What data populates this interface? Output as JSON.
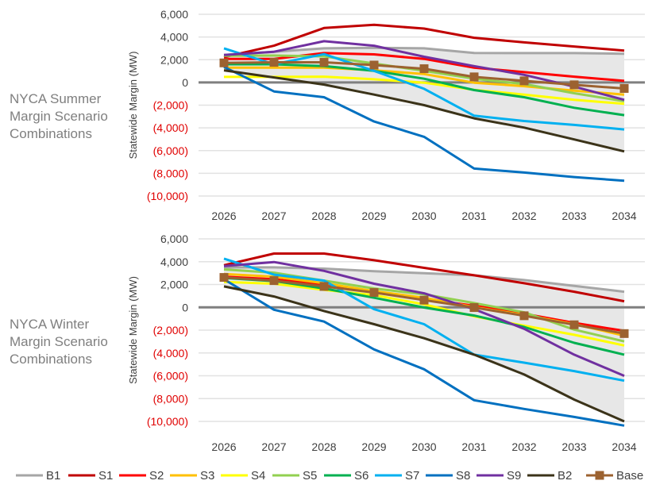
{
  "chart_data": [
    {
      "type": "line",
      "title": "NYCA Summer Margin Scenario Combinations",
      "title_lines": [
        "NYCA Summer",
        "Margin Scenario",
        "Combinations"
      ],
      "ylabel": "Statewide Margin (MW)",
      "xlabel": "",
      "categories": [
        "2026",
        "2027",
        "2028",
        "2029",
        "2030",
        "2031",
        "2032",
        "2033",
        "2034"
      ],
      "ylim": [
        -10000,
        6000
      ],
      "yticks": [
        "6,000",
        "4,000",
        "2,000",
        "0",
        "(2,000)",
        "(4,000)",
        "(6,000)",
        "(8,000)",
        "(10,000)"
      ],
      "ytick_values": [
        6000,
        4000,
        2000,
        0,
        -2000,
        -4000,
        -6000,
        -8000,
        -10000
      ],
      "grid": true,
      "shaded_band": "between B1 and B2",
      "series": [
        {
          "name": "B1",
          "values": [
            2420,
            2700,
            3000,
            3050,
            3000,
            2600,
            2580,
            2580,
            2530
          ]
        },
        {
          "name": "S1",
          "values": [
            2230,
            3230,
            4790,
            5070,
            4740,
            3930,
            3530,
            3160,
            2810
          ]
        },
        {
          "name": "S2",
          "values": [
            2070,
            2070,
            2580,
            2470,
            2070,
            1300,
            910,
            510,
            140
          ]
        },
        {
          "name": "S3",
          "values": [
            1300,
            1300,
            1300,
            1070,
            740,
            -20,
            -330,
            -720,
            -1070
          ]
        },
        {
          "name": "S4",
          "values": [
            490,
            490,
            510,
            280,
            -20,
            -650,
            -1070,
            -1530,
            -1880
          ]
        },
        {
          "name": "S5",
          "values": [
            2350,
            2370,
            2300,
            1670,
            1020,
            330,
            -140,
            -950,
            -1650
          ]
        },
        {
          "name": "S6",
          "values": [
            1600,
            1600,
            1440,
            1020,
            330,
            -670,
            -1300,
            -2230,
            -2880
          ]
        },
        {
          "name": "S7",
          "values": [
            3000,
            1600,
            2490,
            1020,
            -560,
            -2930,
            -3400,
            -3740,
            -4140
          ]
        },
        {
          "name": "S8",
          "values": [
            1370,
            -790,
            -1300,
            -3440,
            -4790,
            -7580,
            -7930,
            -8330,
            -8650
          ]
        },
        {
          "name": "S9",
          "values": [
            2420,
            2700,
            3630,
            3230,
            2260,
            1440,
            670,
            -370,
            -1530
          ]
        },
        {
          "name": "B2",
          "values": [
            1070,
            440,
            -190,
            -1070,
            -2000,
            -3160,
            -3980,
            -5020,
            -6070
          ]
        },
        {
          "name": "Base",
          "values": [
            1720,
            1770,
            1770,
            1530,
            1210,
            490,
            140,
            -210,
            -530
          ]
        }
      ]
    },
    {
      "type": "line",
      "title": "NYCA Winter Margin Scenario Combinations",
      "title_lines": [
        "NYCA Winter",
        "Margin Scenario",
        "Combinations"
      ],
      "ylabel": "Statewide Margin (MW)",
      "xlabel": "",
      "categories": [
        "2026",
        "2027",
        "2028",
        "2029",
        "2030",
        "2031",
        "2032",
        "2033",
        "2034"
      ],
      "ylim": [
        -10000,
        6000
      ],
      "yticks": [
        "6,000",
        "4,000",
        "2,000",
        "0",
        "(2,000)",
        "(4,000)",
        "(6,000)",
        "(8,000)",
        "(10,000)"
      ],
      "ytick_values": [
        6000,
        4000,
        2000,
        0,
        -2000,
        -4000,
        -6000,
        -8000,
        -10000
      ],
      "grid": true,
      "shaded_band": "between B1 and B2",
      "series": [
        {
          "name": "B1",
          "values": [
            3500,
            3500,
            3390,
            3160,
            2990,
            2810,
            2390,
            1880,
            1370
          ]
        },
        {
          "name": "S1",
          "values": [
            3690,
            4710,
            4710,
            4130,
            3460,
            2810,
            2110,
            1370,
            530
          ]
        },
        {
          "name": "S2",
          "values": [
            2690,
            2460,
            2000,
            1370,
            720,
            140,
            -560,
            -1370,
            -2060
          ]
        },
        {
          "name": "S3",
          "values": [
            2920,
            2690,
            2110,
            1420,
            840,
            20,
            -670,
            -1480,
            -2480
          ]
        },
        {
          "name": "S4",
          "values": [
            2230,
            2070,
            1530,
            1070,
            260,
            -790,
            -1600,
            -2410,
            -3340
          ]
        },
        {
          "name": "S5",
          "values": [
            3320,
            3040,
            2340,
            1650,
            1140,
            370,
            -440,
            -1950,
            -2990
          ]
        },
        {
          "name": "S6",
          "values": [
            2580,
            2300,
            1650,
            840,
            -20,
            -720,
            -1720,
            -3110,
            -4150
          ]
        },
        {
          "name": "S7",
          "values": [
            4270,
            2860,
            2340,
            -160,
            -1480,
            -4150,
            -4850,
            -5590,
            -6430
          ]
        },
        {
          "name": "S8",
          "values": [
            2460,
            -210,
            -1250,
            -3690,
            -5430,
            -8140,
            -8910,
            -9610,
            -10370
          ]
        },
        {
          "name": "S9",
          "values": [
            3620,
            3970,
            3200,
            2070,
            1230,
            -160,
            -1880,
            -4150,
            -6010
          ]
        },
        {
          "name": "B2",
          "values": [
            1830,
            950,
            -320,
            -1480,
            -2710,
            -4150,
            -5890,
            -8090,
            -10000
          ]
        },
        {
          "name": "Base",
          "values": [
            2620,
            2340,
            1830,
            1300,
            630,
            -20,
            -740,
            -1530,
            -2300
          ]
        }
      ]
    }
  ],
  "legend": {
    "placement": "bottom",
    "items": [
      {
        "name": "B1",
        "color": "#a6a6a6"
      },
      {
        "name": "S1",
        "color": "#c00000"
      },
      {
        "name": "S2",
        "color": "#ff0000"
      },
      {
        "name": "S3",
        "color": "#ffc000"
      },
      {
        "name": "S4",
        "color": "#ffff00"
      },
      {
        "name": "S5",
        "color": "#92d050"
      },
      {
        "name": "S6",
        "color": "#00b050"
      },
      {
        "name": "S7",
        "color": "#00b0f0"
      },
      {
        "name": "S8",
        "color": "#0070c0"
      },
      {
        "name": "S9",
        "color": "#7030a0"
      },
      {
        "name": "B2",
        "color": "#3b3319"
      },
      {
        "name": "Base",
        "color": "#9c6230",
        "marker": "square"
      }
    ]
  },
  "colors": {
    "shade": "#e7e7e7",
    "zero_line": "#7f7f7f",
    "grid": "#e2e2e2",
    "negative_tick": "#e00000"
  }
}
